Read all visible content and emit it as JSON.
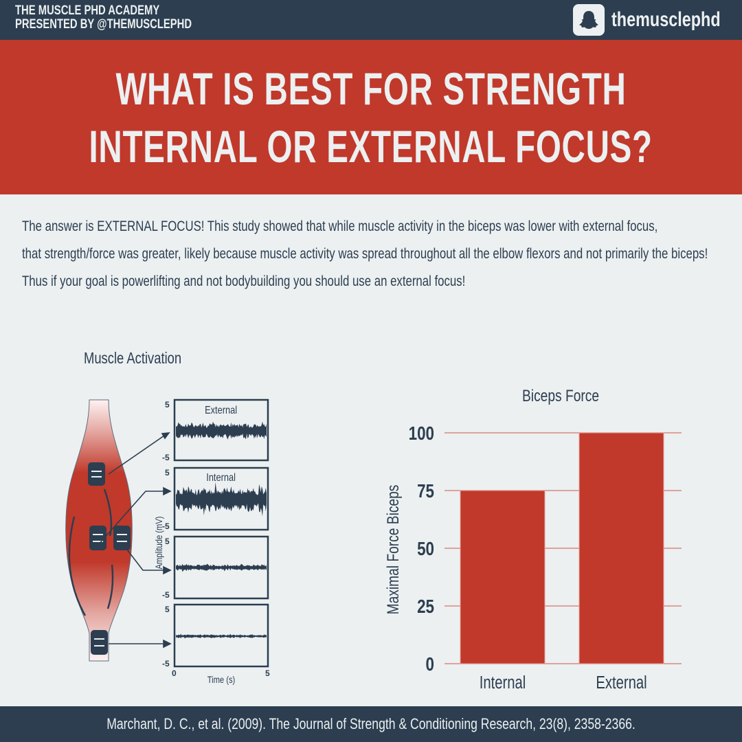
{
  "header": {
    "brand_line1": "THE MUSCLE PHD ACADEMY",
    "brand_line2": "PRESENTED BY @THEMUSCLEPHD",
    "social_icon": "snapchat-ghost-icon",
    "social_handle": "themusclephd"
  },
  "title": {
    "line1": "WHAT IS BEST FOR STRENGTH",
    "line2": "INTERNAL OR EXTERNAL FOCUS?"
  },
  "intro": {
    "line1": "The answer is EXTERNAL FOCUS! This study showed that while muscle activity in the biceps was lower with external focus,",
    "line2": "that strength/force was greater, likely because muscle activity was spread throughout all the elbow flexors and not primarily the biceps!",
    "line3": "Thus if your goal is powerlifting and not bodybuilding you should use an external focus!"
  },
  "colors": {
    "navy": "#2c3e50",
    "red": "#c0392b",
    "background": "#ecf0f1",
    "gridline": "#d98880"
  },
  "chart_data": [
    {
      "type": "line",
      "title": "Muscle Activation",
      "xlabel": "Time (s)",
      "ylabel": "Amplitude (mV)",
      "xlim": [
        0,
        5
      ],
      "ylim": [
        -5,
        5
      ],
      "x_ticks": [
        "0",
        "5"
      ],
      "y_ticks": [
        "5",
        "-5"
      ],
      "panels": [
        {
          "name": "External",
          "label": "External",
          "electrode": "biceps upper",
          "relative_amplitude": 1.0
        },
        {
          "name": "Internal",
          "label": "Internal",
          "electrode": "biceps middle",
          "relative_amplitude": 1.4
        },
        {
          "name": "",
          "label": "",
          "electrode": "brachialis/side",
          "relative_amplitude": 0.35
        },
        {
          "name": "",
          "label": "",
          "electrode": "distal/lower",
          "relative_amplitude": 0.2
        }
      ]
    },
    {
      "type": "bar",
      "title": "Biceps Force",
      "categories": [
        "Internal",
        "External"
      ],
      "values": [
        75,
        100
      ],
      "xlabel": "",
      "ylabel": "Maximal Force Biceps",
      "ylim": [
        0,
        100
      ],
      "y_ticks": [
        "0",
        "25",
        "50",
        "75",
        "100"
      ],
      "grid": true
    }
  ],
  "footer": {
    "citation": "Marchant, D. C., et al. (2009). The Journal of Strength & Conditioning Research, 23(8), 2358-2366."
  }
}
